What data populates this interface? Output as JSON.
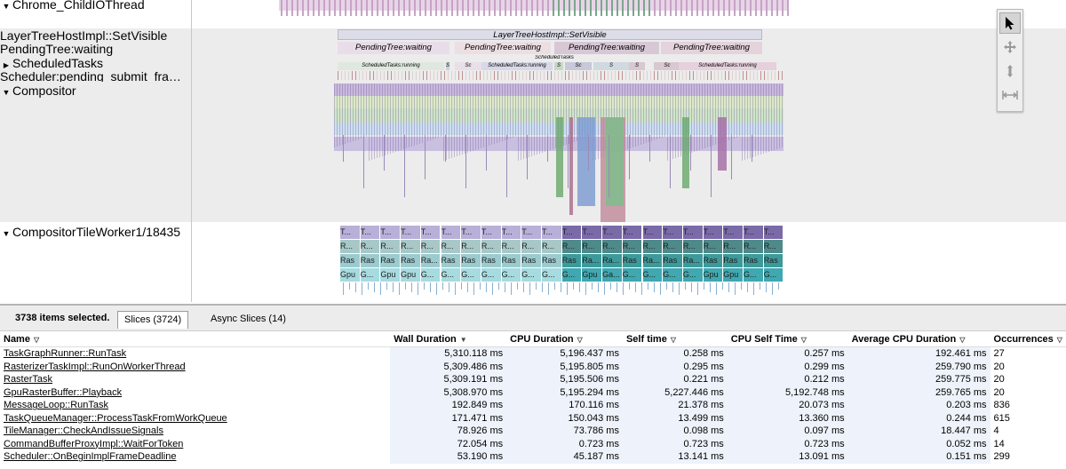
{
  "tracks": {
    "childio": {
      "label": "Chrome_ChildIOThread"
    },
    "renderer": {
      "rows": [
        "LayerTreeHostImpl::SetVisible",
        "PendingTree:waiting",
        "ScheduledTasks",
        "Scheduler:pending_submit_fra…"
      ]
    },
    "compositor": {
      "label": "Compositor"
    },
    "tileworker": {
      "label": "CompositorTileWorker1/18435"
    }
  },
  "slices": {
    "set_visible": "LayerTreeHostImpl::SetVisible",
    "pending": [
      "PendingTree:waiting",
      "PendingTree:waiting",
      "PendingTree:waiting",
      "PendingTree:waiting"
    ],
    "scheduled_running": "ScheduledTasks:running",
    "scheduled_small": "ScheduledTasks",
    "short_s": "S",
    "short_sc": "Sc",
    "tile_row1": "T...",
    "tile_row2": "R...",
    "tile_row3": [
      "Ras",
      "Ras",
      "Ras",
      "Ras",
      "Ra...",
      "Ras",
      "Ras",
      "Ras",
      "Ras",
      "Ras",
      "Ras",
      "Ras",
      "Ra...",
      "Ra...",
      "Ras",
      "Ra...",
      "Ras",
      "Ra...",
      "Ras",
      "Ras",
      "Ras",
      "Ras"
    ],
    "tile_row4": [
      "Gpu",
      "G...",
      "Gpu",
      "Gpu",
      "G...",
      "G...",
      "G...",
      "G...",
      "G...",
      "G...",
      "G...",
      "G...",
      "Gpu",
      "Ga...",
      "G...",
      "G...",
      "G...",
      "G...",
      "Gpu",
      "Gpu",
      "G...",
      "G..."
    ]
  },
  "tools": [
    "select-tool",
    "pan-tool",
    "zoom-tool",
    "timing-tool"
  ],
  "panel": {
    "selected_count": "3738 items selected.",
    "tabs": [
      "Slices (3724)",
      "Async Slices (14)"
    ],
    "columns": [
      "Name",
      "Wall Duration",
      "CPU Duration",
      "Self time",
      "CPU Self Time",
      "Average CPU Duration",
      "Occurrences"
    ],
    "rows": [
      {
        "name": "TaskGraphRunner::RunTask",
        "wall": "5,310.118 ms",
        "cpu": "5,196.437 ms",
        "self": "0.258 ms",
        "cpuself": "0.257 ms",
        "avg": "192.461 ms",
        "occ": "27"
      },
      {
        "name": "RasterizerTaskImpl::RunOnWorkerThread",
        "wall": "5,309.486 ms",
        "cpu": "5,195.805 ms",
        "self": "0.295 ms",
        "cpuself": "0.299 ms",
        "avg": "259.790 ms",
        "occ": "20"
      },
      {
        "name": "RasterTask",
        "wall": "5,309.191 ms",
        "cpu": "5,195.506 ms",
        "self": "0.221 ms",
        "cpuself": "0.212 ms",
        "avg": "259.775 ms",
        "occ": "20"
      },
      {
        "name": "GpuRasterBuffer::Playback",
        "wall": "5,308.970 ms",
        "cpu": "5,195.294 ms",
        "self": "5,227.446 ms",
        "cpuself": "5,192.748 ms",
        "avg": "259.765 ms",
        "occ": "20"
      },
      {
        "name": "MessageLoop::RunTask",
        "wall": "192.849 ms",
        "cpu": "170.116 ms",
        "self": "21.378 ms",
        "cpuself": "20.073 ms",
        "avg": "0.203 ms",
        "occ": "836"
      },
      {
        "name": "TaskQueueManager::ProcessTaskFromWorkQueue",
        "wall": "171.471 ms",
        "cpu": "150.043 ms",
        "self": "13.499 ms",
        "cpuself": "13.360 ms",
        "avg": "0.244 ms",
        "occ": "615"
      },
      {
        "name": "TileManager::CheckAndIssueSignals",
        "wall": "78.926 ms",
        "cpu": "73.786 ms",
        "self": "0.098 ms",
        "cpuself": "0.097 ms",
        "avg": "18.447 ms",
        "occ": "4"
      },
      {
        "name": "CommandBufferProxyImpl::WaitForToken",
        "wall": "72.054 ms",
        "cpu": "0.723 ms",
        "self": "0.723 ms",
        "cpuself": "0.723 ms",
        "avg": "0.052 ms",
        "occ": "14"
      },
      {
        "name": "Scheduler::OnBeginImplFrameDeadline",
        "wall": "53.190 ms",
        "cpu": "45.187 ms",
        "self": "13.141 ms",
        "cpuself": "13.091 ms",
        "avg": "0.151 ms",
        "occ": "299"
      }
    ]
  }
}
